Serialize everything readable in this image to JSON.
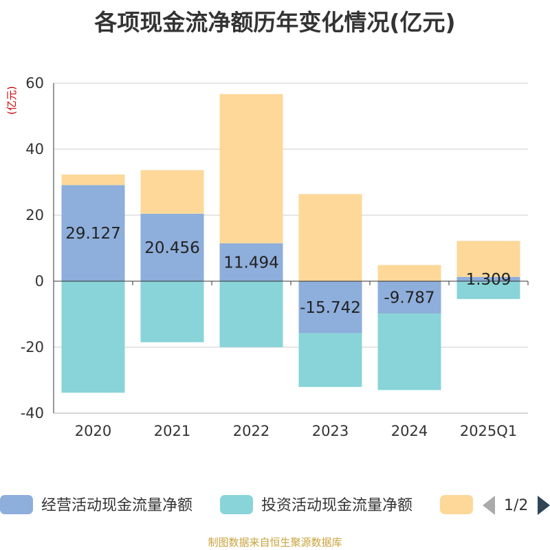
{
  "chart_data": {
    "type": "bar",
    "stacked": true,
    "title": "各项现金流净额历年变化情况(亿元)",
    "ylabel": "(亿元)",
    "ylim": [
      -40,
      60
    ],
    "yticks": [
      60,
      40,
      20,
      0,
      -20,
      -40
    ],
    "grid": true,
    "categories": [
      "2020",
      "2021",
      "2022",
      "2023",
      "2024",
      "2025Q1"
    ],
    "series": [
      {
        "name": "经营活动现金流量净额",
        "color": "#8eaedb",
        "values": [
          29.127,
          20.456,
          11.494,
          -15.742,
          -9.787,
          1.309
        ],
        "labels": [
          "29.127",
          "20.456",
          "11.494",
          "-15.742",
          "-9.787",
          "1.309"
        ]
      },
      {
        "name": "投资活动现金流量净额",
        "color": "#88d4d8",
        "values": [
          -33.8,
          -18.5,
          -20.0,
          -16.3,
          -23.2,
          -5.4
        ]
      },
      {
        "name": "",
        "color": "#fdd899",
        "values": [
          3.2,
          13.2,
          45.2,
          26.4,
          4.9,
          10.9
        ]
      }
    ],
    "legend": {
      "position": "bottom",
      "page_indicator": "1/2"
    }
  },
  "source_note": "制图数据来自恒生聚源数据库",
  "icons": {
    "prev": "triangle-left-icon",
    "next": "triangle-right-icon"
  }
}
